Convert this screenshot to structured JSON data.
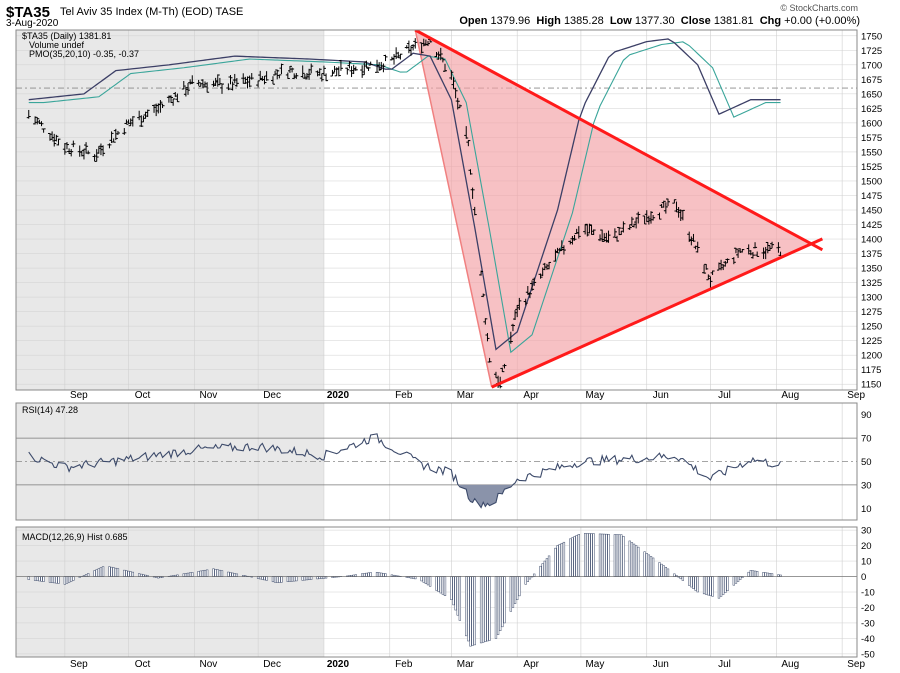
{
  "header": {
    "symbol": "$TA35",
    "name": "Tel Aviv 35 Index (M-Th) (EOD)",
    "exchange": "TASE",
    "date": "3-Aug-2020",
    "credit": "© StockCharts.com",
    "open_label": "Open",
    "open": "1379.96",
    "high_label": "High",
    "high": "1385.28",
    "low_label": "Low",
    "low": "1377.30",
    "close_label": "Close",
    "close": "1381.81",
    "chg_label": "Chg",
    "chg": "+0.00 (+0.00%)"
  },
  "legend": {
    "main": "$TA35 (Daily) 1381.81",
    "volume": "Volume undef",
    "pmo": "PMO(35,20,10) -0.35, -0.37",
    "rsi": "RSI(14) 47.28",
    "macd": "MACD(12,26,9) Hist 0.685"
  },
  "colors": {
    "background": "#ffffff",
    "shaded": "#e8e8e8",
    "grid": "#d0d0d0",
    "price": "#000000",
    "pmo": "#3c3f66",
    "pmo_signal": "#3aa59a",
    "trendline": "#ff1a1a",
    "triangle_fill": "#f2a0a4",
    "rsi_line": "#3c4a6a",
    "rsi_fill": "#8a93aa",
    "macd_bar": "#8a93aa"
  },
  "months": [
    "Sep",
    "Oct",
    "Nov",
    "Dec",
    "2020",
    "Feb",
    "Mar",
    "Apr",
    "May",
    "Jun",
    "Jul",
    "Aug",
    "Sep"
  ],
  "chart_data": [
    {
      "type": "line",
      "title": "$TA35 (Daily) 1381.81",
      "subtitle": "PMO(35,20,10) -0.35, -0.37",
      "x": [
        "2019-08-15",
        "2019-09-01",
        "2019-09-15",
        "2019-10-01",
        "2019-10-15",
        "2019-11-01",
        "2019-11-15",
        "2019-12-01",
        "2019-12-15",
        "2020-01-01",
        "2020-01-15",
        "2020-02-01",
        "2020-02-10",
        "2020-02-20",
        "2020-03-01",
        "2020-03-09",
        "2020-03-16",
        "2020-03-19",
        "2020-03-24",
        "2020-04-01",
        "2020-04-15",
        "2020-05-01",
        "2020-05-15",
        "2020-06-01",
        "2020-06-15",
        "2020-07-01",
        "2020-07-15",
        "2020-08-03"
      ],
      "series": [
        {
          "values": [
            1615,
            1560,
            1545,
            1600,
            1625,
            1670,
            1665,
            1675,
            1690,
            1685,
            1695,
            1705,
            1725,
            1745,
            1680,
            1560,
            1300,
            1195,
            1150,
            1280,
            1350,
            1420,
            1400,
            1440,
            1460,
            1330,
            1380,
            1382
          ]
        }
      ],
      "ylim": [
        1140,
        1760
      ],
      "yticks": [
        1150,
        1175,
        1200,
        1225,
        1250,
        1275,
        1300,
        1325,
        1350,
        1375,
        1400,
        1425,
        1450,
        1475,
        1500,
        1525,
        1550,
        1575,
        1600,
        1625,
        1650,
        1675,
        1700,
        1725,
        1750
      ],
      "reference_line": 1660,
      "pmo_scale": "not shown",
      "annotations": {
        "triangle": [
          [
            "2020-02-13",
            1760
          ],
          [
            "2020-03-20",
            1145
          ],
          [
            "2020-08-18",
            1390
          ]
        ],
        "upper_trendline": [
          [
            "2020-02-13",
            1760
          ],
          [
            "2020-08-18",
            1390
          ]
        ],
        "lower_trendline": [
          [
            "2020-03-20",
            1145
          ],
          [
            "2020-08-18",
            1390
          ]
        ]
      }
    },
    {
      "type": "line",
      "title": "RSI(14) 47.28",
      "x": [
        "2019-08-15",
        "2019-09-01",
        "2019-10-01",
        "2019-11-01",
        "2019-12-01",
        "2020-01-01",
        "2020-01-25",
        "2020-02-15",
        "2020-03-01",
        "2020-03-12",
        "2020-03-20",
        "2020-04-01",
        "2020-05-01",
        "2020-06-01",
        "2020-06-15",
        "2020-07-01",
        "2020-07-20",
        "2020-08-03"
      ],
      "series": [
        {
          "values": [
            55,
            45,
            52,
            60,
            63,
            55,
            71,
            48,
            40,
            15,
            14,
            35,
            50,
            53,
            55,
            35,
            52,
            47
          ]
        }
      ],
      "ylim": [
        0,
        100
      ],
      "yticks": [
        10,
        30,
        50,
        70,
        90
      ],
      "levels": [
        30,
        50,
        70
      ]
    },
    {
      "type": "bar",
      "title": "MACD(12,26,9) Hist 0.685",
      "x": [
        "2019-08-15",
        "2019-09-01",
        "2019-09-20",
        "2019-10-15",
        "2019-11-10",
        "2019-12-10",
        "2020-01-10",
        "2020-01-25",
        "2020-02-15",
        "2020-03-01",
        "2020-03-10",
        "2020-03-22",
        "2020-04-05",
        "2020-04-20",
        "2020-05-01",
        "2020-05-20",
        "2020-06-10",
        "2020-06-25",
        "2020-07-05",
        "2020-07-20",
        "2020-08-03"
      ],
      "series": [
        {
          "values": [
            -2,
            -5,
            7,
            -1,
            5,
            -4,
            0,
            3,
            -2,
            -15,
            -45,
            -40,
            -5,
            20,
            28,
            27,
            6,
            -10,
            -14,
            4,
            1
          ]
        }
      ],
      "ylim": [
        -52,
        32
      ],
      "yticks": [
        -50,
        -40,
        -30,
        -20,
        -10,
        0,
        10,
        20,
        30
      ]
    }
  ]
}
